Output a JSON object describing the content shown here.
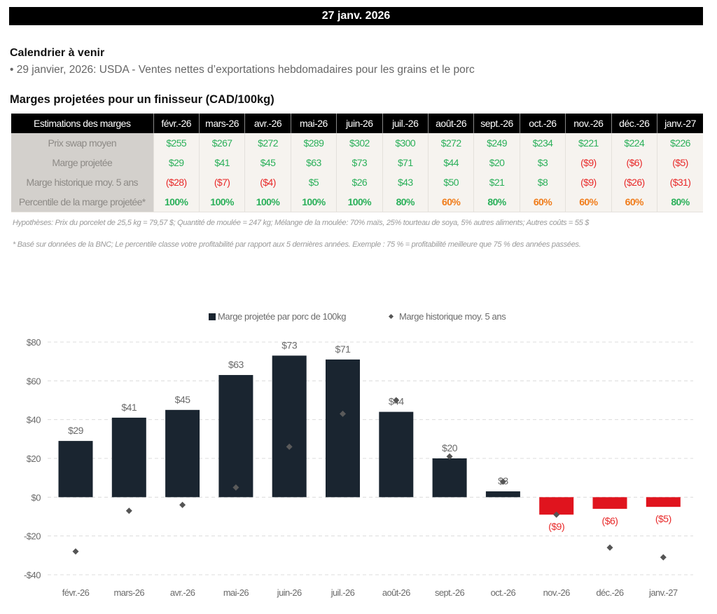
{
  "header": {
    "date": "27 janv. 2026"
  },
  "calendar": {
    "title": "Calendrier à venir",
    "items": [
      "• 29 janvier, 2026: USDA - Ventes nettes d’exportations hebdomadaires pour les grains et le porc"
    ]
  },
  "table": {
    "title": "Marges projetées pour un finisseur (CAD/100kg)",
    "corner_label": "Estimations des marges",
    "columns": [
      "févr.-26",
      "mars-26",
      "avr.-26",
      "mai-26",
      "juin-26",
      "juil.-26",
      "août-26",
      "sept.-26",
      "oct.-26",
      "nov.-26",
      "déc.-26",
      "janv.-27"
    ],
    "rows": [
      {
        "label": "Prix swap moyen",
        "values": [
          "$255",
          "$267",
          "$272",
          "$289",
          "$302",
          "$300",
          "$272",
          "$249",
          "$234",
          "$221",
          "$224",
          "$226"
        ],
        "colors": [
          "green",
          "green",
          "green",
          "green",
          "green",
          "green",
          "green",
          "green",
          "green",
          "green",
          "green",
          "green"
        ]
      },
      {
        "label": "Marge projetée",
        "values": [
          "$29",
          "$41",
          "$45",
          "$63",
          "$73",
          "$71",
          "$44",
          "$20",
          "$3",
          "($9)",
          "($6)",
          "($5)"
        ],
        "colors": [
          "green",
          "green",
          "green",
          "green",
          "green",
          "green",
          "green",
          "green",
          "green",
          "red",
          "red",
          "red"
        ]
      },
      {
        "label": "Marge historique moy. 5 ans",
        "values": [
          "($28)",
          "($7)",
          "($4)",
          "$5",
          "$26",
          "$43",
          "$50",
          "$21",
          "$8",
          "($9)",
          "($26)",
          "($31)"
        ],
        "colors": [
          "red",
          "red",
          "red",
          "green",
          "green",
          "green",
          "green",
          "green",
          "green",
          "red",
          "red",
          "red"
        ]
      },
      {
        "label": "Percentile de la marge projetée*",
        "values": [
          "100%",
          "100%",
          "100%",
          "100%",
          "100%",
          "80%",
          "60%",
          "80%",
          "60%",
          "60%",
          "60%",
          "80%"
        ],
        "colors": [
          "green",
          "green",
          "green",
          "green",
          "green",
          "green",
          "orange",
          "green",
          "orange",
          "orange",
          "orange",
          "green"
        ]
      }
    ],
    "status_colors": {
      "green": "#2bb05a",
      "red": "#e82a2a",
      "orange": "#f07c1a"
    }
  },
  "notes": {
    "assumptions": "Hypothèses: Prix du porcelet de 25,5 kg = 79,57 $; Quantité de moulée = 247 kg; Mélange de la moulée: 70% maïs, 25% tourteau de soya, 5% autres aliments; Autres coûts = 55 $",
    "footnote": "* Basé sur données de la BNC; Le percentile classe votre profitabilité par rapport aux 5 dernières années. Exemple : 75 % = profitabilité meilleure que 75 % des années passées."
  },
  "chart_data": {
    "type": "bar",
    "title": "",
    "xlabel": "",
    "ylabel": "",
    "categories": [
      "févr.-26",
      "mars-26",
      "avr.-26",
      "mai-26",
      "juin-26",
      "juil.-26",
      "août-26",
      "sept.-26",
      "oct.-26",
      "nov.-26",
      "déc.-26",
      "janv.-27"
    ],
    "series": [
      {
        "name": "Marge projetée par porc de 100kg",
        "kind": "bar",
        "values": [
          29,
          41,
          45,
          63,
          73,
          71,
          44,
          20,
          3,
          -9,
          -6,
          -5
        ],
        "labels": [
          "$29",
          "$41",
          "$45",
          "$63",
          "$73",
          "$71",
          "$44",
          "$20",
          "$3",
          "($9)",
          "($6)",
          "($5)"
        ],
        "color_positive": "#1a2530",
        "color_negative": "#e0141e"
      },
      {
        "name": "Marge historique moy. 5 ans",
        "kind": "marker-diamond",
        "values": [
          -28,
          -7,
          -4,
          5,
          26,
          43,
          50,
          21,
          8,
          -9,
          -26,
          -31
        ],
        "color": "#555555"
      }
    ],
    "ylim": [
      -40,
      80
    ],
    "yticks": [
      80,
      60,
      40,
      20,
      0,
      -20,
      -40
    ],
    "ytick_labels": [
      "$80",
      "$60",
      "$40",
      "$20",
      "$0",
      "-$20",
      "-$40"
    ],
    "grid": true,
    "legend_position": "top-center",
    "label_colors": {
      "positive": "#6b6b6b",
      "negative": "#e82a2a"
    }
  }
}
